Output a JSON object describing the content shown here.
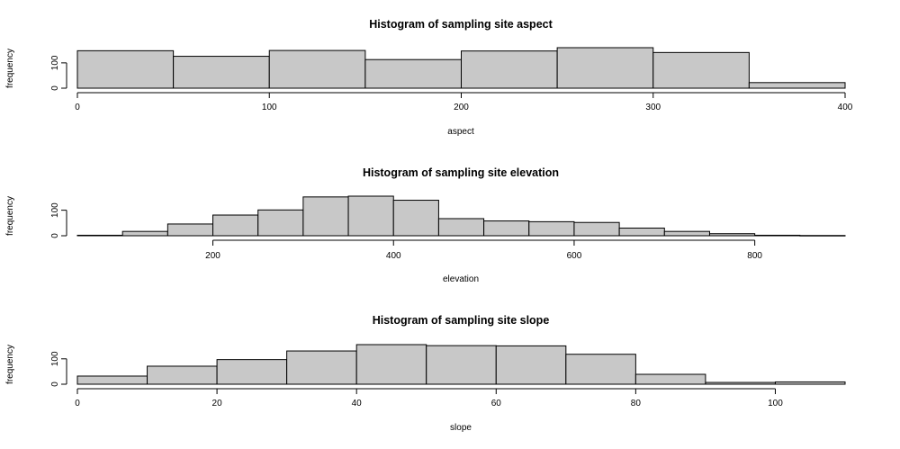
{
  "chart_data": [
    {
      "type": "bar",
      "title": "Histogram of sampling site aspect",
      "xlabel": "aspect",
      "ylabel": "frequency",
      "bin_edges": [
        0,
        50,
        100,
        150,
        200,
        250,
        300,
        350,
        400
      ],
      "values": [
        148,
        126,
        149,
        113,
        147,
        160,
        141,
        22
      ],
      "xlim": [
        0,
        400
      ],
      "ylim": [
        0,
        160
      ],
      "x_ticks": [
        0,
        100,
        200,
        300,
        400
      ],
      "y_ticks": [
        0,
        100
      ],
      "color": "#c8c8c8"
    },
    {
      "type": "bar",
      "title": "Histogram of sampling site elevation",
      "xlabel": "elevation",
      "ylabel": "frequency",
      "bin_edges": [
        50,
        100,
        150,
        200,
        250,
        300,
        350,
        400,
        450,
        500,
        550,
        600,
        650,
        700,
        750,
        800,
        850,
        900
      ],
      "values": [
        2,
        17,
        46,
        81,
        101,
        152,
        155,
        139,
        67,
        58,
        55,
        52,
        30,
        17,
        8,
        2,
        1
      ],
      "xlim": [
        50,
        900
      ],
      "ylim": [
        0,
        155
      ],
      "x_ticks": [
        200,
        400,
        600,
        800
      ],
      "y_ticks": [
        0,
        100
      ],
      "color": "#c8c8c8"
    },
    {
      "type": "bar",
      "title": "Histogram of sampling site slope",
      "xlabel": "slope",
      "ylabel": "frequency",
      "bin_edges": [
        0,
        10,
        20,
        30,
        40,
        50,
        60,
        70,
        80,
        90,
        100,
        110
      ],
      "values": [
        32,
        71,
        97,
        131,
        156,
        152,
        151,
        118,
        39,
        7,
        9
      ],
      "xlim": [
        0,
        110
      ],
      "ylim": [
        0,
        156
      ],
      "x_ticks": [
        0,
        20,
        40,
        60,
        80,
        100
      ],
      "y_ticks": [
        0,
        100
      ],
      "color": "#c8c8c8"
    }
  ]
}
